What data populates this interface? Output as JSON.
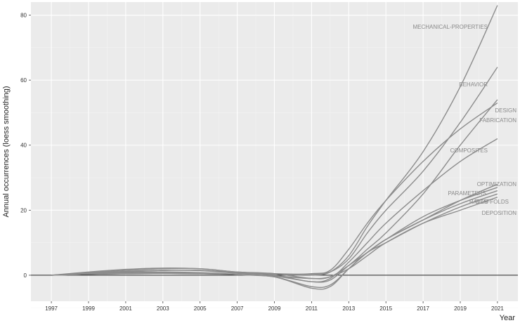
{
  "chart_data": {
    "type": "line",
    "title": "",
    "xlabel": "Year",
    "ylabel": "Annual occurrences (loess smoothing)",
    "xlim": [
      1995.9,
      2022.1
    ],
    "ylim": [
      -8,
      84
    ],
    "x_ticks": [
      1997,
      1999,
      2001,
      2003,
      2005,
      2007,
      2009,
      2011,
      2013,
      2015,
      2017,
      2019,
      2021
    ],
    "y_ticks": [
      0,
      20,
      40,
      60,
      80
    ],
    "grid": true,
    "zero_line": true,
    "background": "#ebebeb",
    "line_color": "#8c8c8c",
    "series": [
      {
        "name": "MECHANICAL-PROPERTIES",
        "x": [
          1997,
          1999,
          2001,
          2003,
          2005,
          2007,
          2009,
          2011,
          2012,
          2013,
          2014,
          2015,
          2017,
          2019,
          2021
        ],
        "y": [
          0,
          0.5,
          1,
          1.5,
          1.5,
          0.8,
          0.3,
          0,
          1,
          6,
          15,
          23,
          38,
          58,
          83
        ]
      },
      {
        "name": "BEHAVIOR",
        "x": [
          1997,
          1999,
          2001,
          2003,
          2005,
          2007,
          2009,
          2011,
          2012,
          2013,
          2014,
          2015,
          2017,
          2019,
          2021
        ],
        "y": [
          0,
          0.8,
          1.5,
          2,
          2,
          1,
          0.5,
          0.3,
          1,
          5,
          13,
          20,
          32,
          47,
          64
        ]
      },
      {
        "name": "DESIGN",
        "x": [
          1997,
          1999,
          2001,
          2003,
          2005,
          2007,
          2009,
          2011,
          2012,
          2013,
          2014,
          2015,
          2017,
          2019,
          2021
        ],
        "y": [
          0,
          1,
          1.8,
          2.2,
          2,
          1,
          0.5,
          -1,
          -0.5,
          3,
          8,
          13,
          25,
          40,
          54
        ]
      },
      {
        "name": "FABRICATION",
        "x": [
          1997,
          1999,
          2001,
          2003,
          2005,
          2007,
          2009,
          2011,
          2012,
          2013,
          2014,
          2015,
          2017,
          2019,
          2021
        ],
        "y": [
          0,
          0.5,
          1,
          1.5,
          1.5,
          0.8,
          0.3,
          0.5,
          1.5,
          8,
          16,
          23,
          35,
          45,
          53
        ]
      },
      {
        "name": "COMPOSITES",
        "x": [
          1997,
          1999,
          2001,
          2003,
          2005,
          2007,
          2009,
          2011,
          2012,
          2013,
          2014,
          2015,
          2017,
          2019,
          2021
        ],
        "y": [
          0,
          0.6,
          1.2,
          1.5,
          1.4,
          0.6,
          0,
          -2,
          -1,
          4,
          10,
          16,
          26,
          35,
          42
        ]
      },
      {
        "name": "OPTIMIZATION",
        "x": [
          1997,
          1999,
          2001,
          2003,
          2005,
          2007,
          2009,
          2011,
          2012,
          2013,
          2014,
          2015,
          2017,
          2019,
          2021
        ],
        "y": [
          0,
          0.3,
          0.6,
          0.8,
          0.7,
          0.2,
          -0.3,
          -1,
          -0.5,
          3,
          7,
          11,
          17,
          23,
          28
        ]
      },
      {
        "name": "PARAMETERS",
        "x": [
          1997,
          1999,
          2001,
          2003,
          2005,
          2007,
          2009,
          2011,
          2012,
          2013,
          2014,
          2015,
          2017,
          2019,
          2021
        ],
        "y": [
          0,
          0.4,
          0.8,
          1,
          0.8,
          0.3,
          -0.5,
          -3.5,
          -3,
          2,
          7,
          11,
          18,
          23,
          27
        ]
      },
      {
        "name": "RATES",
        "x": [
          1997,
          1999,
          2001,
          2003,
          2005,
          2007,
          2009,
          2011,
          2012,
          2013,
          2014,
          2015,
          2017,
          2019,
          2021
        ],
        "y": [
          0,
          0.3,
          0.6,
          0.8,
          0.7,
          0.2,
          -0.5,
          -4,
          -3.5,
          2,
          7,
          10,
          16,
          21,
          25
        ]
      },
      {
        "name": "SCAFFOLDS",
        "x": [
          1997,
          1999,
          2001,
          2003,
          2005,
          2007,
          2009,
          2011,
          2012,
          2013,
          2014,
          2015,
          2017,
          2019,
          2021
        ],
        "y": [
          0,
          0.3,
          0.5,
          0.6,
          0.5,
          0.2,
          -0.3,
          -2,
          -1.5,
          3,
          7,
          11,
          17,
          22,
          26
        ]
      },
      {
        "name": "DEPOSITION",
        "x": [
          1997,
          1999,
          2001,
          2003,
          2005,
          2007,
          2009,
          2011,
          2012,
          2013,
          2014,
          2015,
          2017,
          2019,
          2021
        ],
        "y": [
          0,
          0.3,
          0.5,
          0.6,
          0.5,
          0.2,
          -0.2,
          -1,
          -0.5,
          2,
          6,
          10,
          16,
          20,
          24
        ]
      }
    ],
    "label_texts": {
      "MECHANICAL-PROPERTIES": "MECHANICAL-PROPERTIES",
      "BEHAVIOR": "BEHAVIOR",
      "DESIGN": "DESIGN",
      "FABRICATION": "FABRICATION",
      "COMPOSITES": "COMPOSITES",
      "OPTIMIZATION": "OPTIMIZATION",
      "PARAMETERS": "PARAMETERS",
      "RATES": "RATES",
      "SCAFFOLDS": "SCAFFOLDS",
      "DEPOSITION": "DEPOSITION"
    }
  }
}
